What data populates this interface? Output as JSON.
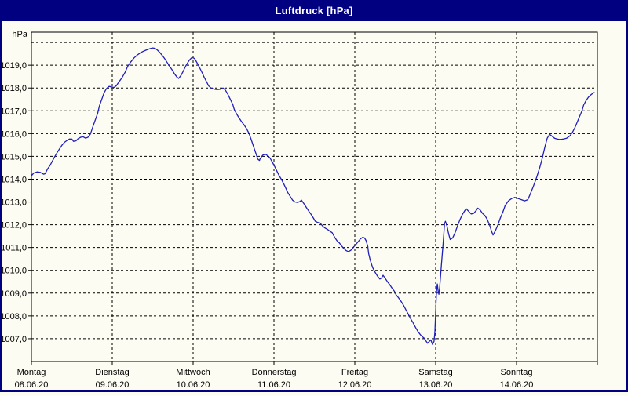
{
  "window": {
    "title": "Luftdruck [hPa]"
  },
  "colors": {
    "title_bar": "#000080",
    "window_border": "#000080",
    "background": "#fcfcf2",
    "line": "#1f1fbe",
    "grid": "#000000",
    "frame": "#000000"
  },
  "chart_data": {
    "type": "line",
    "title": "Luftdruck [hPa]",
    "ylabel": "hPa",
    "grid": true,
    "x_axis": {
      "range_days": [
        0,
        7
      ],
      "days": [
        {
          "name": "Montag",
          "date": "08.06.20",
          "t": 0
        },
        {
          "name": "Dienstag",
          "date": "09.06.20",
          "t": 1
        },
        {
          "name": "Mittwoch",
          "date": "10.06.20",
          "t": 2
        },
        {
          "name": "Donnerstag",
          "date": "11.06.20",
          "t": 3
        },
        {
          "name": "Freitag",
          "date": "12.06.20",
          "t": 4
        },
        {
          "name": "Samstag",
          "date": "13.06.20",
          "t": 5
        },
        {
          "name": "Sonntag",
          "date": "14.06.20",
          "t": 6
        }
      ]
    },
    "y_axis": {
      "unit": "hPa",
      "range": [
        1006.0,
        1020.45
      ],
      "gridline_values": [
        1007,
        1008,
        1009,
        1010,
        1011,
        1012,
        1013,
        1014,
        1015,
        1016,
        1017,
        1018,
        1019,
        1020
      ],
      "tick_values": [
        1019,
        1018,
        1017,
        1016,
        1015,
        1014,
        1013,
        1012,
        1011,
        1010,
        1009,
        1008,
        1007
      ],
      "tick_labels": [
        "1019,0",
        "1018,0",
        "1017,0",
        "1016,0",
        "1015,0",
        "1014,0",
        "1013,0",
        "1012,0",
        "1011,0",
        "1010,0",
        "1009,0",
        "1008,0",
        "1007,0"
      ]
    },
    "series": [
      {
        "name": "Luftdruck",
        "color": "#1f1fbe",
        "points": [
          [
            0,
            1014.15
          ],
          [
            0.03,
            1014.27
          ],
          [
            0.07,
            1014.32
          ],
          [
            0.11,
            1014.3
          ],
          [
            0.15,
            1014.22
          ],
          [
            0.17,
            1014.24
          ],
          [
            0.2,
            1014.45
          ],
          [
            0.23,
            1014.6
          ],
          [
            0.26,
            1014.8
          ],
          [
            0.29,
            1015.0
          ],
          [
            0.32,
            1015.18
          ],
          [
            0.35,
            1015.34
          ],
          [
            0.38,
            1015.5
          ],
          [
            0.41,
            1015.62
          ],
          [
            0.44,
            1015.7
          ],
          [
            0.47,
            1015.76
          ],
          [
            0.5,
            1015.76
          ],
          [
            0.52,
            1015.66
          ],
          [
            0.55,
            1015.68
          ],
          [
            0.58,
            1015.78
          ],
          [
            0.61,
            1015.84
          ],
          [
            0.64,
            1015.86
          ],
          [
            0.67,
            1015.8
          ],
          [
            0.7,
            1015.84
          ],
          [
            0.73,
            1015.98
          ],
          [
            0.76,
            1016.3
          ],
          [
            0.79,
            1016.6
          ],
          [
            0.82,
            1016.9
          ],
          [
            0.84,
            1017.2
          ],
          [
            0.87,
            1017.5
          ],
          [
            0.9,
            1017.8
          ],
          [
            0.93,
            1017.98
          ],
          [
            0.96,
            1018.07
          ],
          [
            0.99,
            1018.05
          ],
          [
            1.02,
            1018.02
          ],
          [
            1.05,
            1018.1
          ],
          [
            1.08,
            1018.25
          ],
          [
            1.12,
            1018.45
          ],
          [
            1.16,
            1018.7
          ],
          [
            1.19,
            1018.95
          ],
          [
            1.23,
            1019.15
          ],
          [
            1.27,
            1019.32
          ],
          [
            1.31,
            1019.45
          ],
          [
            1.35,
            1019.55
          ],
          [
            1.39,
            1019.62
          ],
          [
            1.43,
            1019.68
          ],
          [
            1.47,
            1019.73
          ],
          [
            1.5,
            1019.76
          ],
          [
            1.53,
            1019.74
          ],
          [
            1.56,
            1019.66
          ],
          [
            1.59,
            1019.55
          ],
          [
            1.62,
            1019.42
          ],
          [
            1.65,
            1019.28
          ],
          [
            1.68,
            1019.12
          ],
          [
            1.71,
            1018.95
          ],
          [
            1.74,
            1018.8
          ],
          [
            1.77,
            1018.62
          ],
          [
            1.8,
            1018.48
          ],
          [
            1.82,
            1018.42
          ],
          [
            1.83,
            1018.46
          ],
          [
            1.85,
            1018.55
          ],
          [
            1.88,
            1018.75
          ],
          [
            1.91,
            1018.97
          ],
          [
            1.94,
            1019.15
          ],
          [
            1.96,
            1019.25
          ],
          [
            1.98,
            1019.32
          ],
          [
            2.0,
            1019.33
          ],
          [
            2.02,
            1019.28
          ],
          [
            2.05,
            1019.1
          ],
          [
            2.08,
            1018.9
          ],
          [
            2.11,
            1018.68
          ],
          [
            2.14,
            1018.45
          ],
          [
            2.17,
            1018.25
          ],
          [
            2.19,
            1018.1
          ],
          [
            2.22,
            1018.0
          ],
          [
            2.26,
            1017.95
          ],
          [
            2.3,
            1017.93
          ],
          [
            2.34,
            1017.95
          ],
          [
            2.37,
            1018.0
          ],
          [
            2.4,
            1017.9
          ],
          [
            2.43,
            1017.72
          ],
          [
            2.46,
            1017.5
          ],
          [
            2.49,
            1017.28
          ],
          [
            2.51,
            1017.05
          ],
          [
            2.54,
            1016.85
          ],
          [
            2.57,
            1016.68
          ],
          [
            2.6,
            1016.52
          ],
          [
            2.63,
            1016.38
          ],
          [
            2.66,
            1016.22
          ],
          [
            2.69,
            1016.02
          ],
          [
            2.72,
            1015.72
          ],
          [
            2.75,
            1015.4
          ],
          [
            2.78,
            1015.1
          ],
          [
            2.8,
            1014.88
          ],
          [
            2.82,
            1014.82
          ],
          [
            2.83,
            1014.9
          ],
          [
            2.86,
            1015.05
          ],
          [
            2.89,
            1015.1
          ],
          [
            2.92,
            1015.03
          ],
          [
            2.95,
            1014.93
          ],
          [
            2.98,
            1014.75
          ],
          [
            3.0,
            1014.62
          ],
          [
            3.03,
            1014.4
          ],
          [
            3.06,
            1014.18
          ],
          [
            3.09,
            1014.0
          ],
          [
            3.12,
            1013.8
          ],
          [
            3.15,
            1013.58
          ],
          [
            3.17,
            1013.42
          ],
          [
            3.2,
            1013.25
          ],
          [
            3.23,
            1013.08
          ],
          [
            3.26,
            1013.0
          ],
          [
            3.29,
            1012.98
          ],
          [
            3.32,
            1013.02
          ],
          [
            3.34,
            1013.08
          ],
          [
            3.37,
            1012.93
          ],
          [
            3.4,
            1012.76
          ],
          [
            3.43,
            1012.6
          ],
          [
            3.46,
            1012.45
          ],
          [
            3.49,
            1012.28
          ],
          [
            3.51,
            1012.16
          ],
          [
            3.54,
            1012.1
          ],
          [
            3.57,
            1012.08
          ],
          [
            3.6,
            1011.95
          ],
          [
            3.63,
            1011.86
          ],
          [
            3.66,
            1011.8
          ],
          [
            3.69,
            1011.72
          ],
          [
            3.72,
            1011.65
          ],
          [
            3.75,
            1011.45
          ],
          [
            3.78,
            1011.3
          ],
          [
            3.81,
            1011.2
          ],
          [
            3.83,
            1011.1
          ],
          [
            3.86,
            1010.97
          ],
          [
            3.89,
            1010.87
          ],
          [
            3.92,
            1010.82
          ],
          [
            3.95,
            1010.88
          ],
          [
            3.98,
            1011.0
          ],
          [
            4.01,
            1011.12
          ],
          [
            4.04,
            1011.25
          ],
          [
            4.07,
            1011.38
          ],
          [
            4.1,
            1011.45
          ],
          [
            4.12,
            1011.42
          ],
          [
            4.14,
            1011.3
          ],
          [
            4.16,
            1011.05
          ],
          [
            4.17,
            1010.75
          ],
          [
            4.19,
            1010.45
          ],
          [
            4.22,
            1010.12
          ],
          [
            4.25,
            1009.92
          ],
          [
            4.28,
            1009.75
          ],
          [
            4.31,
            1009.62
          ],
          [
            4.33,
            1009.66
          ],
          [
            4.35,
            1009.78
          ],
          [
            4.37,
            1009.68
          ],
          [
            4.4,
            1009.52
          ],
          [
            4.43,
            1009.38
          ],
          [
            4.46,
            1009.22
          ],
          [
            4.49,
            1009.08
          ],
          [
            4.51,
            1008.93
          ],
          [
            4.54,
            1008.8
          ],
          [
            4.57,
            1008.65
          ],
          [
            4.6,
            1008.48
          ],
          [
            4.63,
            1008.28
          ],
          [
            4.66,
            1008.08
          ],
          [
            4.69,
            1007.88
          ],
          [
            4.72,
            1007.7
          ],
          [
            4.75,
            1007.5
          ],
          [
            4.78,
            1007.32
          ],
          [
            4.81,
            1007.18
          ],
          [
            4.83,
            1007.1
          ],
          [
            4.86,
            1007.02
          ],
          [
            4.88,
            1006.9
          ],
          [
            4.9,
            1006.8
          ],
          [
            4.92,
            1006.88
          ],
          [
            4.94,
            1006.95
          ],
          [
            4.96,
            1006.75
          ],
          [
            4.98,
            1006.88
          ],
          [
            4.99,
            1007.3
          ],
          [
            5.0,
            1008.2
          ],
          [
            5.01,
            1009.05
          ],
          [
            5.02,
            1009.4
          ],
          [
            5.03,
            1009.1
          ],
          [
            5.04,
            1008.95
          ],
          [
            5.05,
            1009.25
          ],
          [
            5.07,
            1010.2
          ],
          [
            5.09,
            1011.1
          ],
          [
            5.11,
            1012.05
          ],
          [
            5.12,
            1012.15
          ],
          [
            5.14,
            1011.95
          ],
          [
            5.16,
            1011.6
          ],
          [
            5.18,
            1011.35
          ],
          [
            5.21,
            1011.42
          ],
          [
            5.24,
            1011.65
          ],
          [
            5.27,
            1011.95
          ],
          [
            5.3,
            1012.22
          ],
          [
            5.33,
            1012.45
          ],
          [
            5.36,
            1012.62
          ],
          [
            5.38,
            1012.7
          ],
          [
            5.41,
            1012.58
          ],
          [
            5.44,
            1012.47
          ],
          [
            5.47,
            1012.5
          ],
          [
            5.5,
            1012.62
          ],
          [
            5.52,
            1012.73
          ],
          [
            5.55,
            1012.65
          ],
          [
            5.58,
            1012.5
          ],
          [
            5.61,
            1012.4
          ],
          [
            5.64,
            1012.22
          ],
          [
            5.67,
            1011.95
          ],
          [
            5.69,
            1011.72
          ],
          [
            5.71,
            1011.55
          ],
          [
            5.74,
            1011.75
          ],
          [
            5.77,
            1012.0
          ],
          [
            5.8,
            1012.3
          ],
          [
            5.83,
            1012.55
          ],
          [
            5.86,
            1012.85
          ],
          [
            5.9,
            1013.05
          ],
          [
            5.94,
            1013.15
          ],
          [
            5.98,
            1013.2
          ],
          [
            6.02,
            1013.15
          ],
          [
            6.06,
            1013.1
          ],
          [
            6.1,
            1013.05
          ],
          [
            6.14,
            1013.1
          ],
          [
            6.17,
            1013.35
          ],
          [
            6.21,
            1013.7
          ],
          [
            6.25,
            1014.1
          ],
          [
            6.29,
            1014.55
          ],
          [
            6.32,
            1014.95
          ],
          [
            6.35,
            1015.4
          ],
          [
            6.38,
            1015.8
          ],
          [
            6.41,
            1015.97
          ],
          [
            6.44,
            1015.88
          ],
          [
            6.47,
            1015.8
          ],
          [
            6.5,
            1015.76
          ],
          [
            6.54,
            1015.74
          ],
          [
            6.58,
            1015.76
          ],
          [
            6.62,
            1015.8
          ],
          [
            6.66,
            1015.9
          ],
          [
            6.69,
            1016.05
          ],
          [
            6.72,
            1016.25
          ],
          [
            6.75,
            1016.5
          ],
          [
            6.78,
            1016.75
          ],
          [
            6.81,
            1017.0
          ],
          [
            6.83,
            1017.25
          ],
          [
            6.86,
            1017.45
          ],
          [
            6.89,
            1017.6
          ],
          [
            6.92,
            1017.7
          ],
          [
            6.94,
            1017.76
          ],
          [
            6.96,
            1017.8
          ]
        ]
      }
    ]
  }
}
